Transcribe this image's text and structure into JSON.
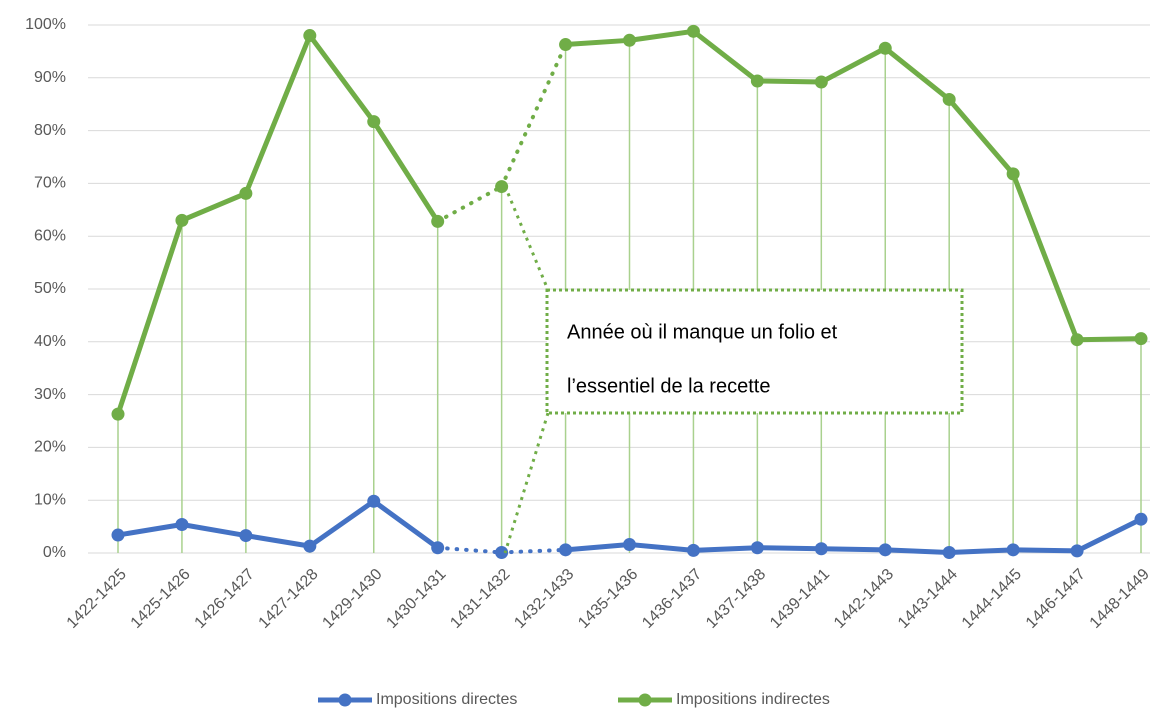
{
  "chart_data": {
    "type": "line",
    "categories": [
      "1422-1425",
      "1425-1426",
      "1426-1427",
      "1427-1428",
      "1429-1430",
      "1430-1431",
      "1431-1432",
      "1432-1433",
      "1435-1436",
      "1436-1437",
      "1437-1438",
      "1439-1441",
      "1442-1443",
      "1443-1444",
      "1444-1445",
      "1446-1447",
      "1448-1449"
    ],
    "series": [
      {
        "name": "Impositions directes",
        "color": "#4472c4",
        "values": [
          3.4,
          5.4,
          3.3,
          1.3,
          9.8,
          1.0,
          0.1,
          0.6,
          1.6,
          0.5,
          1.0,
          0.8,
          0.6,
          0.1,
          0.6,
          0.4,
          6.4
        ]
      },
      {
        "name": "Impositions indirectes",
        "color": "#70ad47",
        "values": [
          26.3,
          63.0,
          68.1,
          98.0,
          81.7,
          62.8,
          69.4,
          96.3,
          97.1,
          98.8,
          89.4,
          89.2,
          95.6,
          85.9,
          71.8,
          40.4,
          40.6
        ]
      }
    ],
    "dotted_categories": [
      "1431-1432"
    ],
    "drop_lines": true,
    "ylim": [
      0,
      100
    ],
    "yticks": [
      {
        "value": 0,
        "label": "0%"
      },
      {
        "value": 10,
        "label": "10%"
      },
      {
        "value": 20,
        "label": "20%"
      },
      {
        "value": 30,
        "label": "30%"
      },
      {
        "value": 40,
        "label": "40%"
      },
      {
        "value": 50,
        "label": "50%"
      },
      {
        "value": 60,
        "label": "60%"
      },
      {
        "value": 70,
        "label": "70%"
      },
      {
        "value": 80,
        "label": "80%"
      },
      {
        "value": 90,
        "label": "90%"
      },
      {
        "value": 100,
        "label": "100%"
      }
    ],
    "grid": true,
    "legend": "bottom",
    "annotation": [
      "Année où il manque un folio et",
      "l’essentiel de la recette"
    ]
  }
}
